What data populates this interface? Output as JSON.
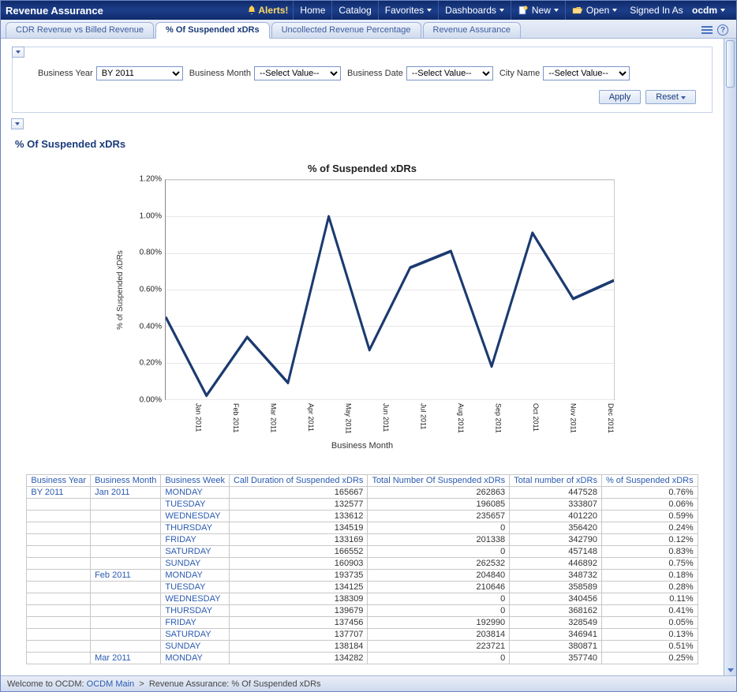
{
  "header": {
    "app_title": "Revenue Assurance",
    "alerts_label": "Alerts!",
    "links": {
      "home": "Home",
      "catalog": "Catalog",
      "favorites": "Favorites",
      "dashboards": "Dashboards",
      "new": "New",
      "open": "Open",
      "signed_in_prefix": "Signed In As",
      "user": "ocdm"
    }
  },
  "tabs": [
    {
      "label": "CDR Revenue vs Billed Revenue",
      "active": false
    },
    {
      "label": "% Of Suspended xDRs",
      "active": true
    },
    {
      "label": "Uncollected Revenue Percentage",
      "active": false
    },
    {
      "label": "Revenue Assurance",
      "active": false
    }
  ],
  "filters": {
    "business_year": {
      "label": "Business Year",
      "value": "BY 2011"
    },
    "business_month": {
      "label": "Business Month",
      "placeholder": "--Select Value--"
    },
    "business_date": {
      "label": "Business Date",
      "placeholder": "--Select Value--"
    },
    "city_name": {
      "label": "City Name",
      "placeholder": "--Select Value--"
    },
    "apply_label": "Apply",
    "reset_label": "Reset"
  },
  "section_title": "% Of Suspended xDRs",
  "chart": {
    "type": "line",
    "title": "% of Suspended xDRs",
    "y_label": "% of Suspended xDRs",
    "x_label": "Business Month",
    "ylim": [
      0,
      1.2
    ],
    "ytick_step": 0.2,
    "y_format": "percent_2dp",
    "categories": [
      "Jan 2011",
      "Feb 2011",
      "Mar 2011",
      "Apr 2011",
      "May 2011",
      "Jun 2011",
      "Jul 2011",
      "Aug 2011",
      "Sep 2011",
      "Oct 2011",
      "Nov 2011",
      "Dec 2011"
    ],
    "values": [
      0.45,
      0.02,
      0.34,
      0.09,
      1.0,
      0.27,
      0.72,
      0.81,
      0.18,
      0.91,
      0.55,
      0.65
    ],
    "line_color": "#1b3a70",
    "line_width": 3,
    "background_color": "#ffffff",
    "grid_color": "#e8e8e8"
  },
  "table": {
    "columns": [
      "Business Year",
      "Business Month",
      "Business Week",
      "Call Duration of Suspended xDRs",
      "Total Number Of Suspended xDRs",
      "Total number of xDRs",
      "% of Suspended xDRs"
    ],
    "rows": [
      [
        "BY 2011",
        "Jan 2011",
        "MONDAY",
        "165667",
        "262863",
        "447528",
        "0.76%"
      ],
      [
        "",
        "",
        "TUESDAY",
        "132577",
        "196085",
        "333807",
        "0.06%"
      ],
      [
        "",
        "",
        "WEDNESDAY",
        "133612",
        "235657",
        "401220",
        "0.59%"
      ],
      [
        "",
        "",
        "THURSDAY",
        "134519",
        "0",
        "356420",
        "0.24%"
      ],
      [
        "",
        "",
        "FRIDAY",
        "133169",
        "201338",
        "342790",
        "0.12%"
      ],
      [
        "",
        "",
        "SATURDAY",
        "166552",
        "0",
        "457148",
        "0.83%"
      ],
      [
        "",
        "",
        "SUNDAY",
        "160903",
        "262532",
        "446892",
        "0.75%"
      ],
      [
        "",
        "Feb 2011",
        "MONDAY",
        "193735",
        "204840",
        "348732",
        "0.18%"
      ],
      [
        "",
        "",
        "TUESDAY",
        "134125",
        "210646",
        "358589",
        "0.28%"
      ],
      [
        "",
        "",
        "WEDNESDAY",
        "138309",
        "0",
        "340456",
        "0.11%"
      ],
      [
        "",
        "",
        "THURSDAY",
        "139679",
        "0",
        "368162",
        "0.41%"
      ],
      [
        "",
        "",
        "FRIDAY",
        "137456",
        "192990",
        "328549",
        "0.05%"
      ],
      [
        "",
        "",
        "SATURDAY",
        "137707",
        "203814",
        "346941",
        "0.13%"
      ],
      [
        "",
        "",
        "SUNDAY",
        "138184",
        "223721",
        "380871",
        "0.51%"
      ],
      [
        "",
        "Mar 2011",
        "MONDAY",
        "134282",
        "0",
        "357740",
        "0.25%"
      ]
    ]
  },
  "footer": {
    "welcome_prefix": "Welcome to OCDM:",
    "root_link": "OCDM Main",
    "sep": ">",
    "current": "Revenue Assurance: % Of Suspended xDRs"
  }
}
